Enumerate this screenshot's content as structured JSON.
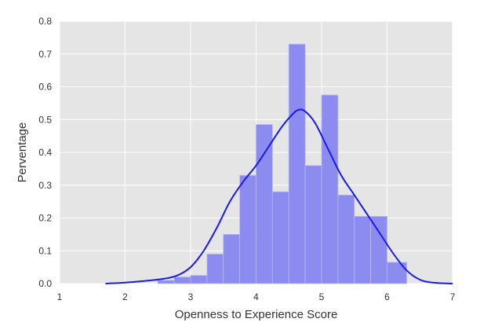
{
  "chart_data": {
    "type": "bar",
    "title": "",
    "xlabel": "Openness to Experience Score",
    "ylabel": "Perventage",
    "xlim": [
      1,
      7
    ],
    "ylim": [
      0,
      0.8
    ],
    "xticks": [
      "1",
      "2",
      "3",
      "4",
      "5",
      "6",
      "7"
    ],
    "yticks": [
      "0.0",
      "0.1",
      "0.2",
      "0.3",
      "0.4",
      "0.5",
      "0.6",
      "0.7",
      "0.8"
    ],
    "grid": true,
    "background_color": "#e5e5e5",
    "grid_color": "#ffffff",
    "bar_color": "#8c8cf0",
    "line_color": "#1a1aee",
    "histogram": {
      "bin_edges": [
        2.5,
        2.75,
        3.0,
        3.25,
        3.5,
        3.75,
        4.0,
        4.25,
        4.5,
        4.75,
        5.0,
        5.25,
        5.5,
        5.75,
        6.0,
        6.3
      ],
      "values": [
        0.01,
        0.02,
        0.025,
        0.09,
        0.15,
        0.33,
        0.485,
        0.28,
        0.73,
        0.36,
        0.575,
        0.27,
        0.205,
        0.205,
        0.065
      ]
    },
    "kde": {
      "x": [
        1.7,
        2.0,
        2.3,
        2.6,
        2.8,
        3.0,
        3.2,
        3.4,
        3.6,
        3.8,
        4.0,
        4.2,
        4.4,
        4.55,
        4.65,
        4.75,
        4.9,
        5.1,
        5.3,
        5.5,
        5.7,
        5.9,
        6.1,
        6.3,
        6.5,
        6.7,
        7.0
      ],
      "y": [
        0.0,
        0.003,
        0.008,
        0.015,
        0.025,
        0.05,
        0.1,
        0.17,
        0.25,
        0.31,
        0.36,
        0.42,
        0.48,
        0.515,
        0.53,
        0.525,
        0.49,
        0.41,
        0.33,
        0.27,
        0.21,
        0.15,
        0.09,
        0.04,
        0.012,
        0.003,
        0.0
      ]
    }
  }
}
